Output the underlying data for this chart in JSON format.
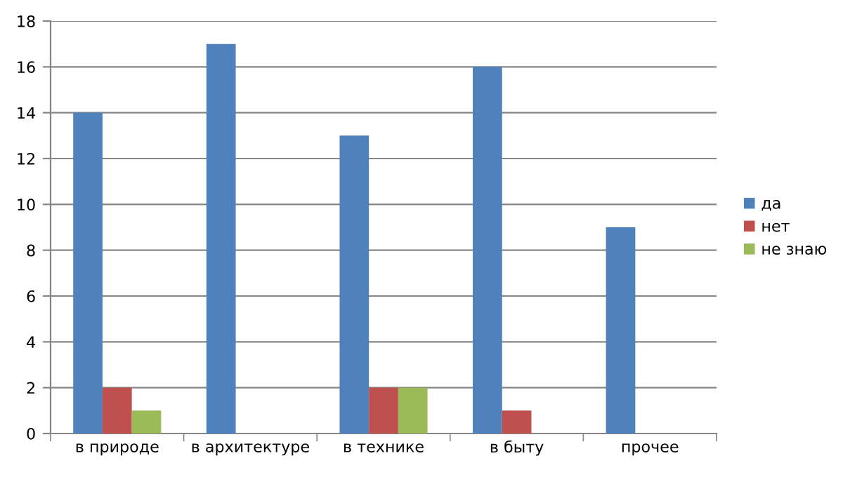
{
  "chart_data": {
    "type": "bar",
    "categories": [
      "в природе",
      "в архитектуре",
      "в технике",
      "в быту",
      "прочее"
    ],
    "series": [
      {
        "name": "да",
        "color": "#4f81bd",
        "values": [
          14,
          17,
          13,
          16,
          9
        ]
      },
      {
        "name": "нет",
        "color": "#c0504d",
        "values": [
          2,
          0,
          2,
          1,
          0
        ]
      },
      {
        "name": "не знаю",
        "color": "#9bbb59",
        "values": [
          1,
          0,
          2,
          0,
          0
        ]
      }
    ],
    "ylim": [
      0,
      18
    ],
    "yticks": [
      0,
      2,
      4,
      6,
      8,
      10,
      12,
      14,
      16,
      18
    ],
    "grid": "y",
    "legend": "right"
  }
}
